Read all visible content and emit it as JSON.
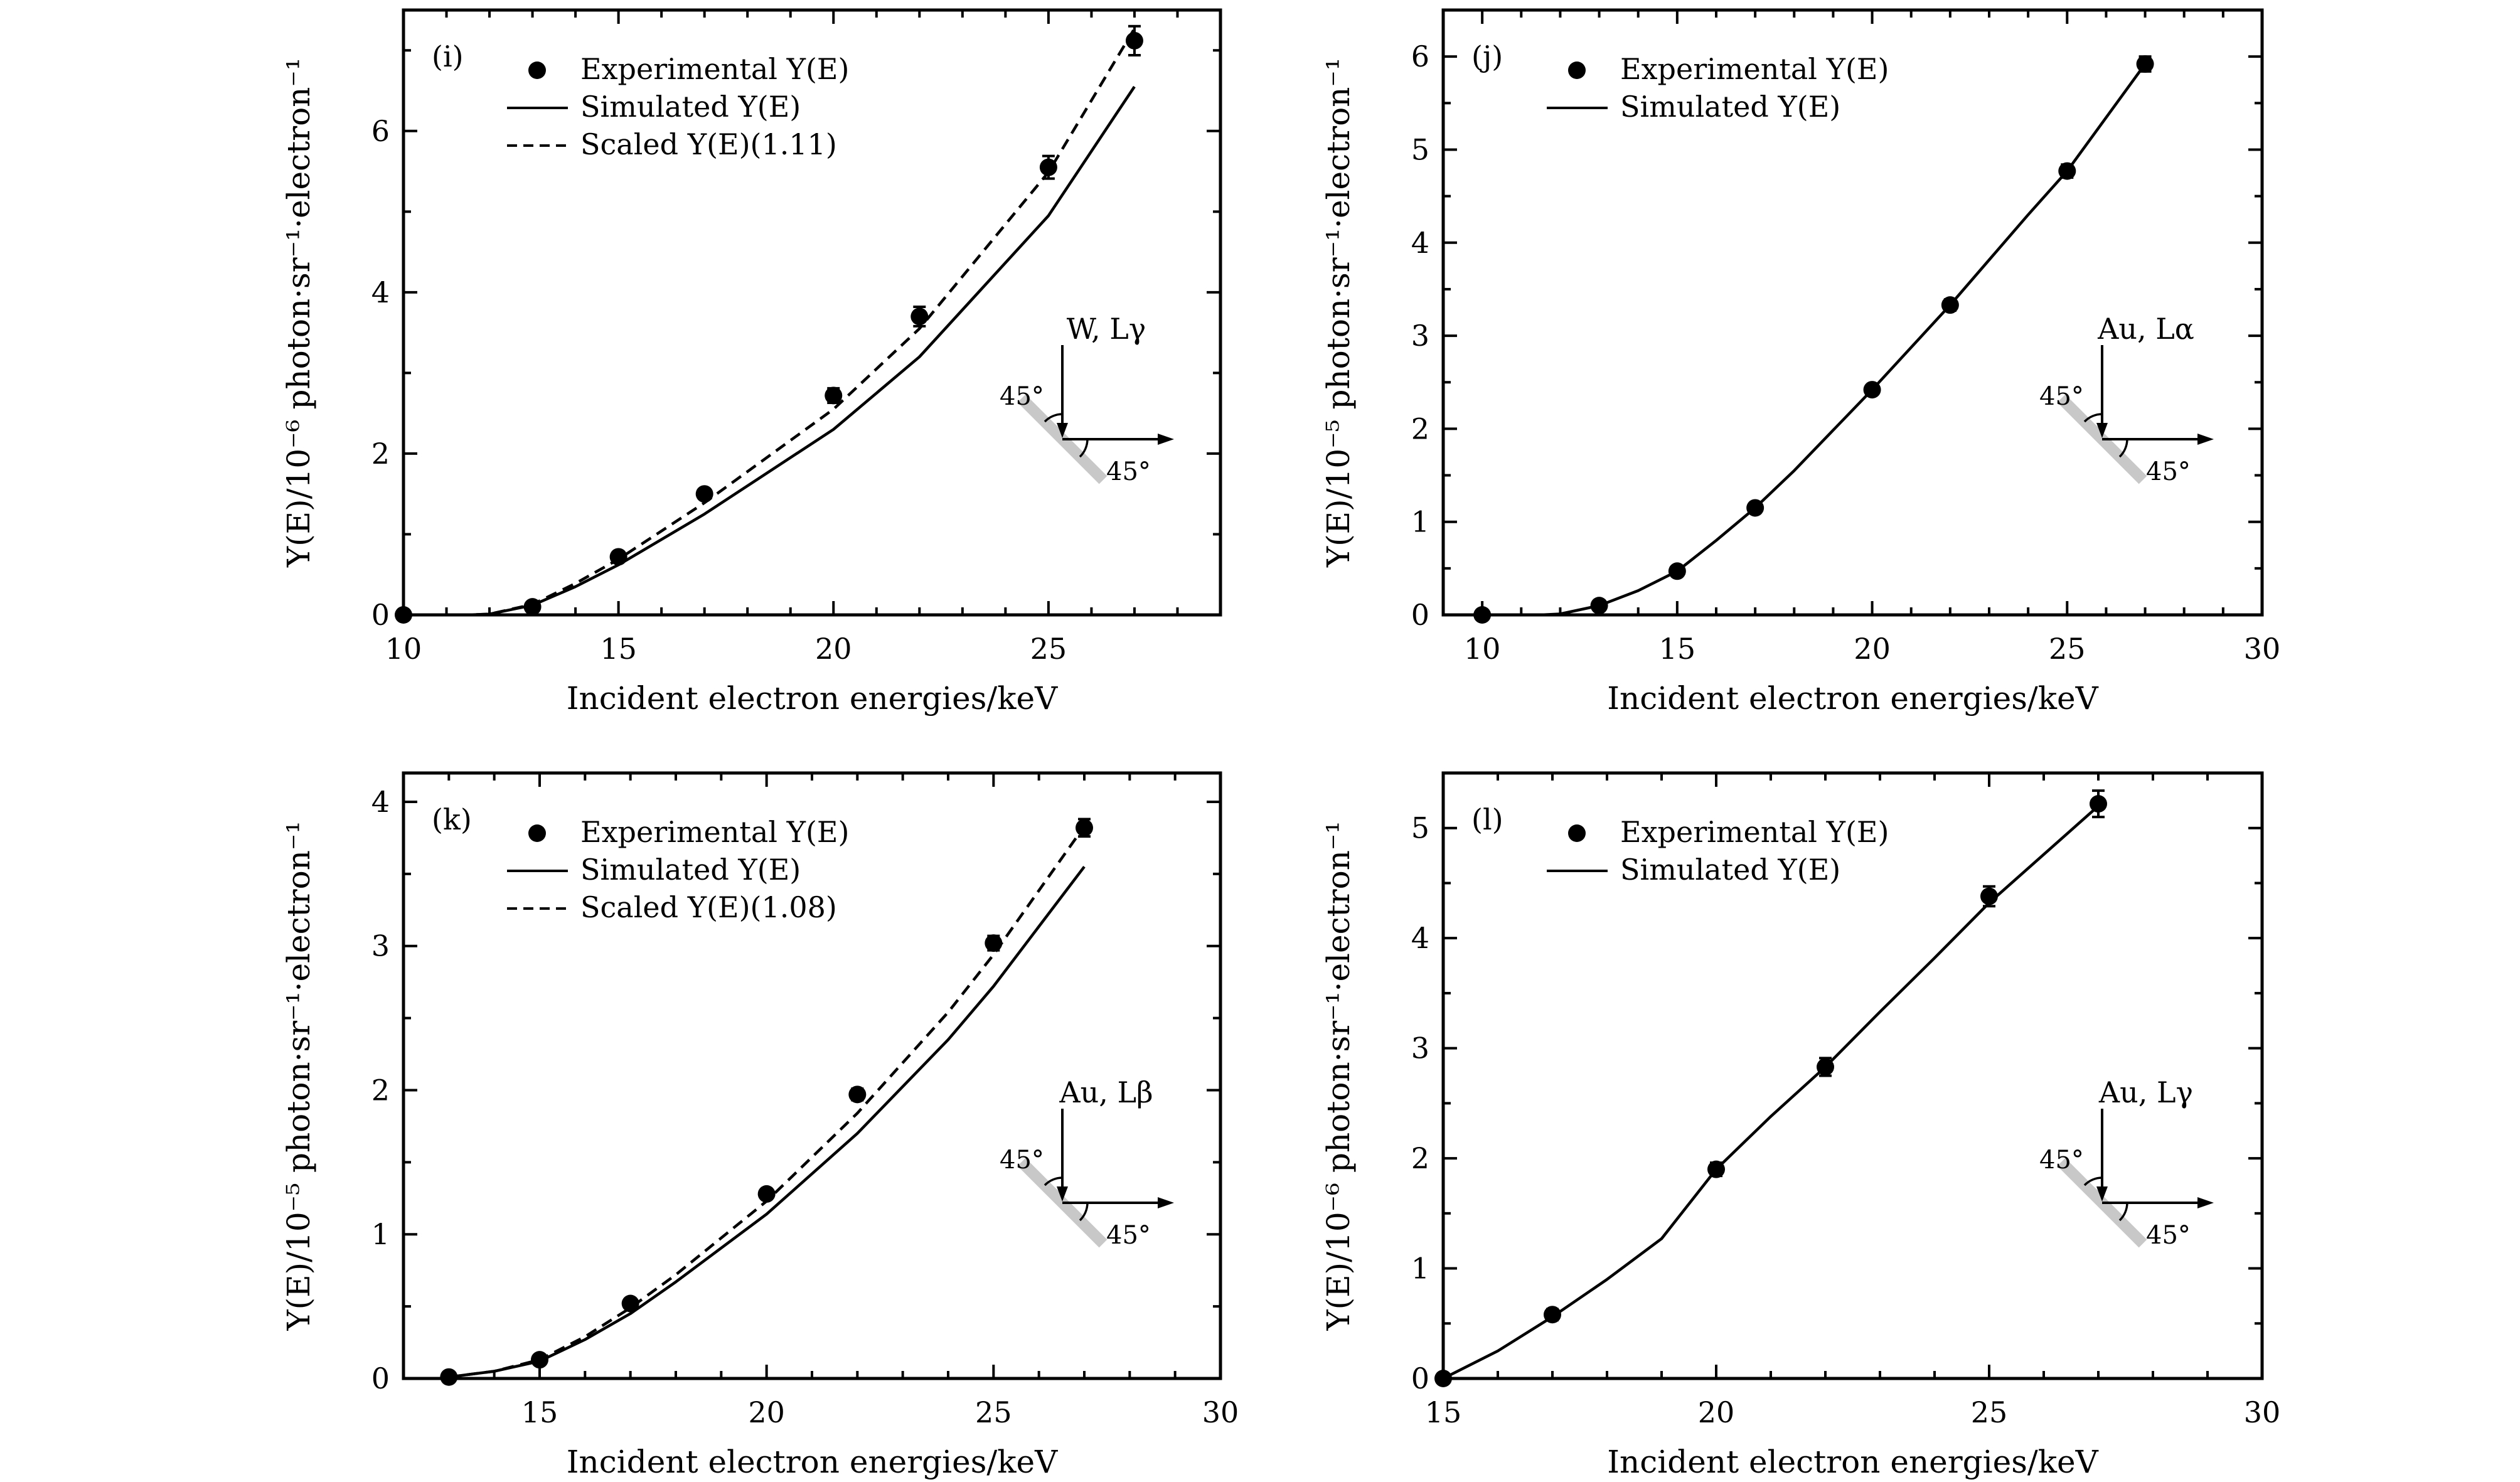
{
  "chart_data": [
    {
      "type": "scatter",
      "panel_label": "(i)",
      "xlabel": "Incident electron energies/keV",
      "ylabel": "Y(E)/10⁻⁶ photon·sr⁻¹·electron⁻¹",
      "xlim": [
        10,
        29
      ],
      "ylim": [
        0,
        7.5
      ],
      "xticks": [
        10,
        15,
        20,
        25
      ],
      "yticks": [
        0,
        2,
        4,
        6
      ],
      "material": "W, Lγ",
      "angle_in": "45°",
      "angle_out": "45°",
      "legend": [
        "Experimental Y(E)",
        "Simulated Y(E)",
        "Scaled Y(E)(1.11)"
      ],
      "series": [
        {
          "name": "Experimental Y(E)",
          "style": "points",
          "x": [
            10,
            13,
            15,
            17,
            20,
            22,
            25,
            27
          ],
          "y": [
            0.0,
            0.1,
            0.72,
            1.5,
            2.72,
            3.7,
            5.55,
            7.12
          ],
          "err": [
            0,
            0.02,
            0.05,
            0.06,
            0.09,
            0.12,
            0.14,
            0.18
          ]
        },
        {
          "name": "Simulated Y(E)",
          "style": "solid",
          "x": [
            10,
            11,
            11.5,
            12,
            13,
            14,
            15,
            17,
            20,
            22,
            25,
            27
          ],
          "y": [
            0.0,
            0.0,
            0.0,
            0.01,
            0.12,
            0.35,
            0.62,
            1.25,
            2.3,
            3.2,
            4.95,
            6.55
          ]
        },
        {
          "name": "Scaled Y(E)(1.11)",
          "style": "dashed",
          "x": [
            10,
            11,
            11.5,
            12,
            13,
            14,
            15,
            17,
            20,
            22,
            25,
            27
          ],
          "y": [
            0.0,
            0.0,
            0.0,
            0.01,
            0.13,
            0.39,
            0.69,
            1.39,
            2.55,
            3.55,
            5.49,
            7.27
          ]
        }
      ]
    },
    {
      "type": "scatter",
      "panel_label": "(j)",
      "xlabel": "Incident electron energies/keV",
      "ylabel": "Y(E)/10⁻⁵ photon·sr⁻¹·electron⁻¹",
      "xlim": [
        9,
        30
      ],
      "ylim": [
        0,
        6.5
      ],
      "xticks": [
        10,
        15,
        20,
        25,
        30
      ],
      "yticks": [
        0,
        1,
        2,
        3,
        4,
        5,
        6
      ],
      "material": "Au, Lα",
      "angle_in": "45°",
      "angle_out": "45°",
      "legend": [
        "Experimental Y(E)",
        "Simulated Y(E)"
      ],
      "series": [
        {
          "name": "Experimental Y(E)",
          "style": "points",
          "x": [
            10,
            13,
            15,
            17,
            20,
            22,
            25,
            27
          ],
          "y": [
            0.0,
            0.1,
            0.47,
            1.15,
            2.42,
            3.33,
            4.77,
            5.92
          ],
          "err": [
            0,
            0.02,
            0.03,
            0.04,
            0.05,
            0.06,
            0.07,
            0.08
          ]
        },
        {
          "name": "Simulated Y(E)",
          "style": "solid",
          "x": [
            10,
            11,
            11.5,
            12,
            13,
            14,
            15,
            16,
            17,
            18,
            20,
            22,
            24,
            25,
            27
          ],
          "y": [
            0.0,
            0.0,
            0.0,
            0.01,
            0.1,
            0.26,
            0.47,
            0.8,
            1.15,
            1.55,
            2.42,
            3.33,
            4.3,
            4.77,
            5.92
          ]
        }
      ]
    },
    {
      "type": "scatter",
      "panel_label": "(k)",
      "xlabel": "Incident electron energies/keV",
      "ylabel": "Y(E)/10⁻⁵ photon·sr⁻¹·electron⁻¹",
      "xlim": [
        12,
        30
      ],
      "ylim": [
        0,
        4.2
      ],
      "xticks": [
        15,
        20,
        25,
        30
      ],
      "yticks": [
        0,
        1,
        2,
        3,
        4
      ],
      "material": "Au, Lβ",
      "angle_in": "45°",
      "angle_out": "45°",
      "legend": [
        "Experimental Y(E)",
        "Simulated Y(E)",
        "Scaled Y(E)(1.08)"
      ],
      "series": [
        {
          "name": "Experimental Y(E)",
          "style": "points",
          "x": [
            13,
            15,
            17,
            20,
            22,
            25,
            27
          ],
          "y": [
            0.01,
            0.13,
            0.52,
            1.28,
            1.97,
            3.02,
            3.82
          ],
          "err": [
            0,
            0.02,
            0.02,
            0.03,
            0.04,
            0.05,
            0.06
          ]
        },
        {
          "name": "Simulated Y(E)",
          "style": "solid",
          "x": [
            13,
            14,
            15,
            16,
            17,
            18,
            20,
            22,
            24,
            25,
            27
          ],
          "y": [
            0.01,
            0.05,
            0.12,
            0.27,
            0.45,
            0.67,
            1.14,
            1.7,
            2.35,
            2.72,
            3.55
          ]
        },
        {
          "name": "Scaled Y(E)(1.08)",
          "style": "dashed",
          "x": [
            13,
            14,
            15,
            16,
            17,
            18,
            20,
            22,
            24,
            25,
            27
          ],
          "y": [
            0.01,
            0.05,
            0.13,
            0.29,
            0.49,
            0.72,
            1.23,
            1.84,
            2.54,
            2.94,
            3.83
          ]
        }
      ]
    },
    {
      "type": "scatter",
      "panel_label": "(l)",
      "xlabel": "Incident electron energies/keV",
      "ylabel": "Y(E)/10⁻⁶ photon·sr⁻¹·electron⁻¹",
      "xlim": [
        15,
        30
      ],
      "ylim": [
        0,
        5.5
      ],
      "xticks": [
        15,
        20,
        25,
        30
      ],
      "yticks": [
        0,
        1,
        2,
        3,
        4,
        5
      ],
      "material": "Au, Lγ",
      "angle_in": "45°",
      "angle_out": "45°",
      "legend": [
        "Experimental Y(E)",
        "Simulated Y(E)"
      ],
      "series": [
        {
          "name": "Experimental Y(E)",
          "style": "points",
          "x": [
            15,
            17,
            20,
            22,
            25,
            27
          ],
          "y": [
            0.0,
            0.58,
            1.9,
            2.83,
            4.38,
            5.22
          ],
          "err": [
            0,
            0.05,
            0.06,
            0.08,
            0.09,
            0.12
          ]
        },
        {
          "name": "Simulated Y(E)",
          "style": "solid",
          "x": [
            15,
            16,
            17,
            18,
            19,
            20,
            21,
            22,
            23,
            24,
            25,
            26,
            27
          ],
          "y": [
            0.0,
            0.25,
            0.56,
            0.9,
            1.27,
            1.9,
            2.38,
            2.83,
            3.33,
            3.82,
            4.32,
            4.76,
            5.2
          ]
        }
      ]
    }
  ]
}
